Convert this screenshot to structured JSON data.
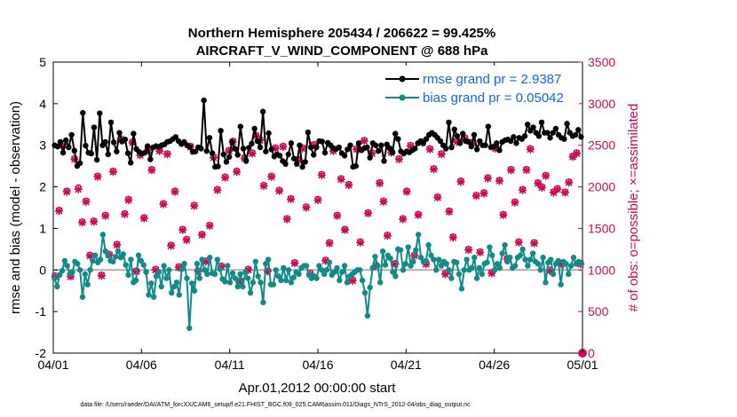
{
  "chart_data": {
    "type": "line",
    "title": [
      "Northern Hemisphere 205434 / 206622 = 99.425%",
      "AIRCRAFT_V_WIND_COMPONENT @ 688 hPa"
    ],
    "xlabel": "Apr.01,2012 00:00:00 start",
    "ylabel": "rmse and bias (model - observation)",
    "ylabel_right": "# of obs: o=possible; ×=assimilated",
    "footnote": "data file: /Users/raeder/DAI/ATM_forcXX/CAM6_setup/f.e21.FHIST_BGC.f09_025.CAM6assim.011/Diags_NTrS_2012-04/obs_diag_output.nc",
    "xlim": [
      0,
      30
    ],
    "ylim": [
      -2,
      5
    ],
    "ylim_right": [
      0,
      3500
    ],
    "grid": false,
    "legend_position": "top-right",
    "x_ticks": [
      0,
      5,
      10,
      15,
      20,
      25,
      30
    ],
    "x_tick_labels": [
      "04/01",
      "04/06",
      "04/11",
      "04/16",
      "04/21",
      "04/26",
      "05/01"
    ],
    "y_ticks": [
      -2,
      -1,
      0,
      1,
      2,
      3,
      4,
      5
    ],
    "y_tick_labels": [
      "-2",
      "-1",
      "0",
      "1",
      "2",
      "3",
      "4",
      "5"
    ],
    "y_right_ticks": [
      0,
      500,
      1000,
      1500,
      2000,
      2500,
      3000,
      3500
    ],
    "y_right_tick_labels": [
      "0",
      "500",
      "1000",
      "1500",
      "2000",
      "2500",
      "3000",
      "3500"
    ],
    "series": [
      {
        "name": "rmse grand pr = 2.9387",
        "axis": "left",
        "color": "#000000",
        "values": [
          3.0,
          2.97,
          3.08,
          2.82,
          3.12,
          2.95,
          3.25,
          2.87,
          2.5,
          2.57,
          3.78,
          2.99,
          2.82,
          2.8,
          3.43,
          2.65,
          3.77,
          3.0,
          3.08,
          2.78,
          3.55,
          3.07,
          2.85,
          3.3,
          3.09,
          3.14,
          2.81,
          2.58,
          3.28,
          2.91,
          2.84,
          2.8,
          2.82,
          2.98,
          2.66,
          2.95,
          2.98,
          2.96,
          3.0,
          3.02,
          3.08,
          3.1,
          3.15,
          3.2,
          3.1,
          3.03,
          3.08,
          3.0,
          2.96,
          2.84,
          2.85,
          2.95,
          2.92,
          4.08,
          2.86,
          3.18,
          2.81,
          2.48,
          2.49,
          3.35,
          2.78,
          2.6,
          2.72,
          3.08,
          2.92,
          2.77,
          3.45,
          2.92,
          2.62,
          2.94,
          3.04,
          3.4,
          3.1,
          2.95,
          3.81,
          2.85,
          3.29,
          2.9,
          2.73,
          2.78,
          2.75,
          2.62,
          2.55,
          2.78,
          3.05,
          2.68,
          2.55,
          3.0,
          2.48,
          2.6,
          3.31,
          2.95,
          2.77,
          2.95,
          3.1,
          3.09,
          2.82,
          3.06,
          3.0,
          2.93,
          2.91,
          2.95,
          2.81,
          2.75,
          2.9,
          3.0,
          2.48,
          2.5,
          3.05,
          2.88,
          2.93,
          2.95,
          2.7,
          3.05,
          3.0,
          2.86,
          3.0,
          2.62,
          3.02,
          2.93,
          2.83,
          3.28,
          3.15,
          2.85,
          2.8,
          2.85,
          2.83,
          2.88,
          2.92,
          3.05,
          3.1,
          3.05,
          3.15,
          3.25,
          3.3,
          3.25,
          3.18,
          3.1,
          3.0,
          2.92,
          3.55,
          2.95,
          3.38,
          3.22,
          3.05,
          3.28,
          3.1,
          3.08,
          2.97,
          3.25,
          2.9,
          3.1,
          3.0,
          3.0,
          3.45,
          2.95,
          2.97,
          3.05,
          2.88,
          3.08,
          3.12,
          3.14,
          3.1,
          3.2,
          3.05,
          3.18,
          3.15,
          3.22,
          3.5,
          3.35,
          3.43,
          3.3,
          3.22,
          3.55,
          3.3,
          3.3,
          3.18,
          3.3,
          3.4,
          3.25,
          3.18,
          3.15,
          3.52,
          3.3,
          3.22,
          3.25,
          3.37,
          3.2
        ]
      },
      {
        "name": "bias grand pr = 0.05042",
        "axis": "left",
        "color": "#138a8a",
        "values": [
          -0.2,
          -0.4,
          -0.12,
          -0.02,
          0.22,
          0.1,
          -0.1,
          -0.05,
          0.2,
          0.15,
          0.0,
          -0.65,
          -0.1,
          -0.35,
          0.0,
          0.22,
          0.35,
          0.18,
          0.25,
          0.85,
          0.45,
          0.35,
          0.22,
          0.2,
          0.32,
          0.45,
          0.3,
          0.38,
          0.12,
          -0.12,
          0.25,
          -0.3,
          -0.25,
          0.35,
          0.22,
          0.12,
          -0.05,
          -0.6,
          -0.32,
          -0.65,
          -0.15,
          -0.05,
          -0.4,
          0.1,
          -0.2,
          0.0,
          -0.55,
          -0.4,
          -0.3,
          -0.6,
          0.02,
          0.15,
          -0.2,
          -1.4,
          -0.32,
          -0.5,
          0.15,
          -0.2,
          0.25,
          0.0,
          -0.1,
          0.3,
          -0.08,
          -0.1,
          0.25,
          0.02,
          -0.22,
          -0.28,
          0.1,
          -0.3,
          -0.08,
          -0.2,
          -0.4,
          -0.1,
          -0.4,
          -0.05,
          -0.2,
          -0.55,
          -0.3,
          0.2,
          -0.15,
          -0.3,
          -0.78,
          0.15,
          0.25,
          -0.35,
          -0.35,
          0.0,
          -0.15,
          -0.25,
          0.05,
          -0.25,
          0.0,
          -0.3,
          -0.18,
          -0.05,
          -0.1,
          0.05,
          0.1,
          0.1,
          -0.12,
          -0.2,
          -0.15,
          -0.2,
          0.1,
          0.0,
          -0.1,
          0.0,
          0.18,
          -0.12,
          -0.05,
          0.05,
          -0.25,
          -0.05,
          0.1,
          -0.3,
          -0.15,
          -0.1,
          -0.05,
          0.0,
          0.0,
          -0.25,
          -0.55,
          -1.1,
          -0.42,
          0.05,
          0.32,
          0.1,
          -0.3,
          0.45,
          0.12,
          0.35,
          0.28,
          -0.05,
          -0.15,
          0.5,
          0.48,
          0.0,
          0.15,
          0.55,
          0.1,
          0.2,
          0.48,
          0.85,
          0.3,
          0.2,
          0.22,
          0.6,
          0.35,
          0.25,
          0.0,
          0.25,
          0.1,
          0.2,
          0.15,
          0.0,
          -0.2,
          0.2,
          0.18,
          -0.1,
          -0.45,
          0.0,
          0.25,
          0.0,
          0.05,
          0.3,
          -0.2,
          0.05,
          -0.1,
          0.15,
          0.18,
          0.55,
          0.35,
          0.0,
          0.15,
          0.05,
          0.4,
          0.6,
          0.2,
          0.3,
          0.05,
          0.1,
          0.3,
          0.35,
          0.5,
          0.25,
          0.1,
          0.25,
          0.4,
          0.2,
          0.15,
          0.0,
          0.3,
          -0.3,
          0.18,
          0.25,
          -0.1,
          0.15,
          0.22,
          -0.35,
          0.2,
          0.15,
          -0.1,
          0.1,
          0.3,
          0.15,
          0.2,
          0.15
        ]
      },
      {
        "name": "possible",
        "axis": "right",
        "color": "#cc0a55",
        "marker": "o",
        "values": [
          930,
          1720,
          2520,
          1950,
          930,
          2340,
          1990,
          1580,
          1830,
          1180,
          1590,
          2130,
          940,
          1660,
          1190,
          2190,
          1310,
          2580,
          1680,
          1850,
          2540,
          990,
          2390,
          1630,
          2450,
          2210,
          1010,
          2440,
          1800,
          2400,
          1300,
          1950,
          1040,
          1490,
          1370,
          2490,
          1780,
          990,
          1430,
          1110,
          1540,
          2360,
          1970,
          1050,
          2120,
          2440,
          2550,
          2190,
          870,
          2350,
          1010,
          2410,
          2620,
          2570,
          2020,
          990,
          2130,
          2470,
          1960,
          2490,
          1620,
          1860,
          1090,
          2330,
          2470,
          1760,
          960,
          2510,
          1850,
          2150,
          1120,
          1330,
          2440,
          1660,
          2100,
          1490,
          2030,
          880,
          2460,
          1340,
          2560,
          1690,
          2410,
          1060,
          2050,
          1830,
          1420,
          2420,
          1080,
          2340,
          1620,
          1950,
          2500,
          1180,
          1670,
          2540,
          1080,
          2460,
          2220,
          1880,
          2400,
          960,
          1710,
          1400,
          2550,
          2070,
          2590,
          1250,
          2540,
          1900,
          1220,
          1930,
          2110,
          970,
          2470,
          2080,
          1670,
          1140,
          2210,
          1820,
          1340,
          1970,
          2210,
          2460,
          1330,
          2050,
          2000,
          2140,
          1000,
          1940,
          1980,
          1080,
          1940,
          2060,
          2370,
          2410,
          1080
        ]
      },
      {
        "name": "assimilated",
        "axis": "right",
        "color": "#cc0a55",
        "marker": "x",
        "values": [
          920,
          1710,
          2500,
          1940,
          920,
          2330,
          1970,
          1570,
          1820,
          1170,
          1580,
          2120,
          930,
          1650,
          1180,
          2180,
          1300,
          2560,
          1670,
          1840,
          2530,
          980,
          2380,
          1620,
          2440,
          2200,
          1000,
          2430,
          1790,
          2390,
          1290,
          1940,
          1030,
          1480,
          1360,
          2480,
          1770,
          980,
          1420,
          1100,
          1530,
          2350,
          1960,
          1040,
          2110,
          2430,
          2540,
          2180,
          860,
          2340,
          1000,
          2400,
          2610,
          2560,
          2010,
          980,
          2120,
          2460,
          1950,
          2480,
          1610,
          1850,
          1080,
          2320,
          2460,
          1750,
          950,
          2500,
          1840,
          2140,
          1110,
          1320,
          2430,
          1650,
          2090,
          1480,
          2020,
          870,
          2450,
          1330,
          2550,
          1680,
          2400,
          1050,
          2040,
          1820,
          1410,
          2410,
          1070,
          2330,
          1610,
          1940,
          2490,
          1170,
          1660,
          2530,
          1070,
          2450,
          2210,
          1870,
          2390,
          950,
          1700,
          1390,
          2540,
          2060,
          2580,
          1240,
          2530,
          1890,
          1210,
          1920,
          2100,
          960,
          2460,
          2070,
          1660,
          1130,
          2200,
          1810,
          1330,
          1960,
          2200,
          2450,
          1320,
          2040,
          1990,
          2130,
          990,
          1930,
          1970,
          1070,
          1930,
          2050,
          2360,
          2400,
          1070
        ]
      }
    ],
    "highlight_point": {
      "x": 30,
      "y_right": 0,
      "label": ""
    }
  }
}
